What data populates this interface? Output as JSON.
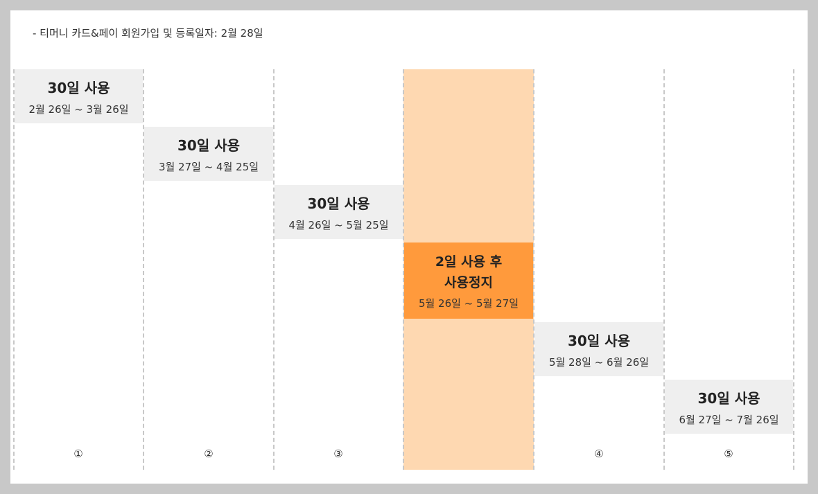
{
  "header": {
    "text": "- 티머니 카드&페이 회원가입 및 등록일자: 2월 28일"
  },
  "highlight_color": "#fed8b1",
  "stop_color": "#ff9a3c",
  "block_color": "#efefef",
  "blocks": [
    {
      "title": "30일 사용",
      "range": "2월 26일 ~ 3월 26일"
    },
    {
      "title": "30일 사용",
      "range": "3월 27일 ~ 4월 25일"
    },
    {
      "title": "30일 사용",
      "range": "4월 26일 ~ 5월 25일"
    },
    {
      "title_line1": "2일 사용 후",
      "title_line2": "사용정지",
      "range": "5월 26일 ~ 5월 27일"
    },
    {
      "title": "30일 사용",
      "range": "5월 28일 ~ 6월 26일"
    },
    {
      "title": "30일 사용",
      "range": "6월 27일 ~ 7월 26일"
    }
  ],
  "column_numbers": [
    "①",
    "②",
    "③",
    "④",
    "⑤"
  ]
}
